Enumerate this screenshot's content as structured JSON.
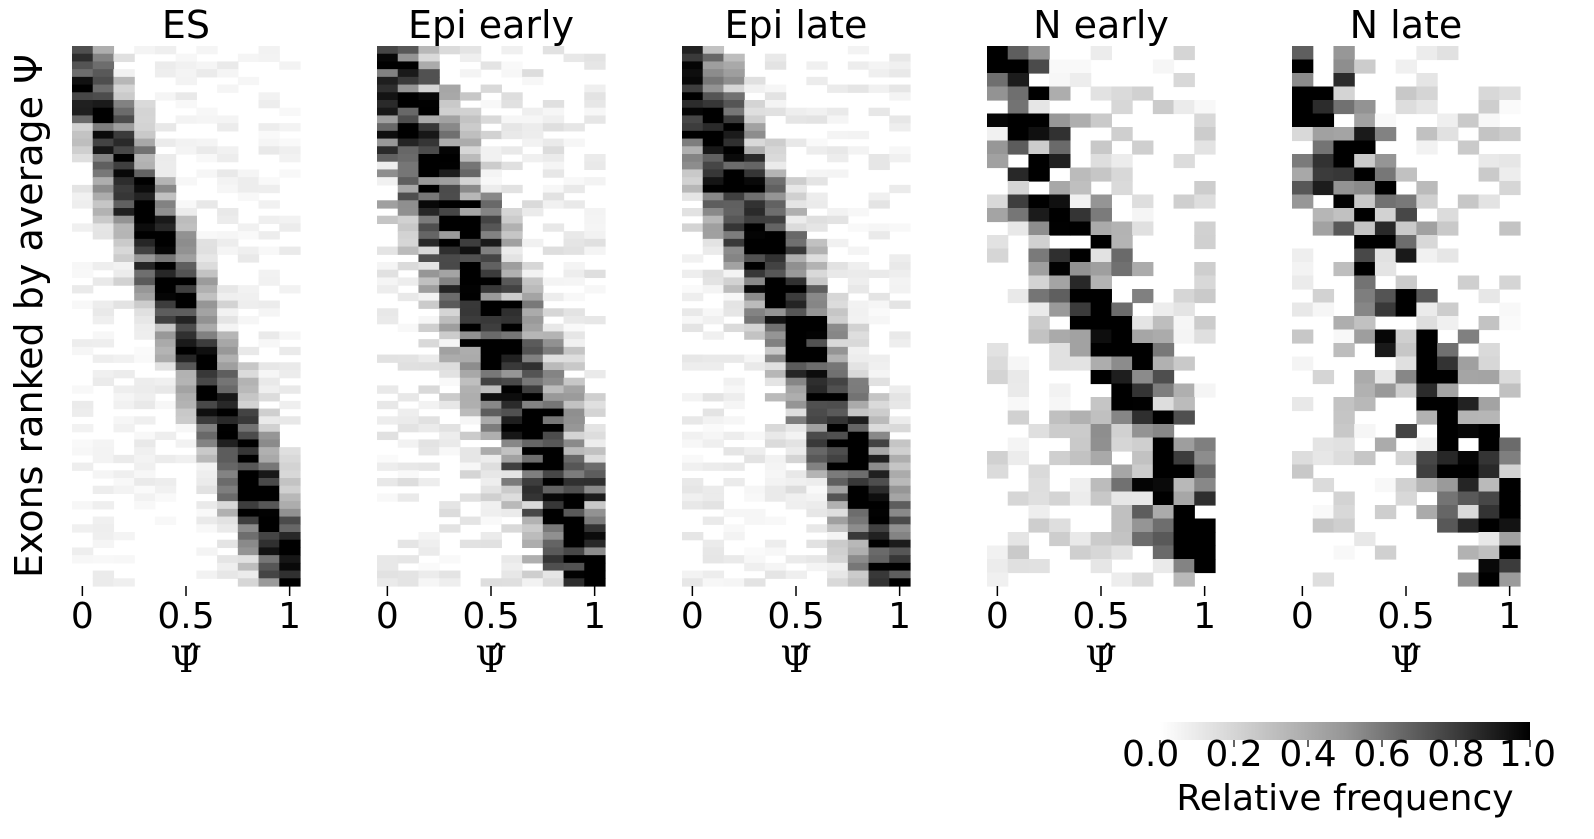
{
  "figure": {
    "ylabel": "Exons ranked by average Ψ",
    "colorbar": {
      "label": "Relative frequency",
      "ticks": [
        "0.0",
        "0.2",
        "0.4",
        "0.6",
        "0.8",
        "1.0"
      ],
      "range": [
        0,
        1
      ],
      "colormap": "Greys",
      "low_color": "#ffffff",
      "high_color": "#000000"
    }
  },
  "chart_data": [
    {
      "type": "heatmap",
      "title": "ES",
      "xlabel": "Ψ̂",
      "xticks": [
        "0",
        "0.5",
        "1"
      ],
      "xlim": [
        0,
        1
      ],
      "n_bins": 11,
      "n_rows": 70,
      "peak_start": 0.02,
      "peak_end": 0.97,
      "spread": 0.09,
      "noise": 0.22,
      "sparsity": 0.0,
      "seed": 11
    },
    {
      "type": "heatmap",
      "title": "Epi early",
      "xlabel": "Ψ̂",
      "xticks": [
        "0",
        "0.5",
        "1"
      ],
      "xlim": [
        0,
        1
      ],
      "n_bins": 11,
      "n_rows": 70,
      "peak_start": 0.03,
      "peak_end": 0.97,
      "spread": 0.13,
      "noise": 0.35,
      "sparsity": 0.0,
      "seed": 23
    },
    {
      "type": "heatmap",
      "title": "Epi late",
      "xlabel": "Ψ̂",
      "xticks": [
        "0",
        "0.5",
        "1"
      ],
      "xlim": [
        0,
        1
      ],
      "n_bins": 11,
      "n_rows": 70,
      "peak_start": 0.0,
      "peak_end": 0.97,
      "spread": 0.11,
      "noise": 0.28,
      "sparsity": 0.0,
      "seed": 37
    },
    {
      "type": "heatmap",
      "title": "N early",
      "xlabel": "Ψ̂",
      "xticks": [
        "0",
        "0.5",
        "1"
      ],
      "xlim": [
        0,
        1
      ],
      "n_bins": 11,
      "n_rows": 40,
      "peak_start": 0.02,
      "peak_end": 0.97,
      "spread": 0.13,
      "noise": 0.55,
      "sparsity": 0.22,
      "seed": 51
    },
    {
      "type": "heatmap",
      "title": "N late",
      "xlabel": "Ψ̂",
      "xticks": [
        "0",
        "0.5",
        "1"
      ],
      "xlim": [
        0,
        1
      ],
      "n_bins": 11,
      "n_rows": 40,
      "peak_start": 0.02,
      "peak_end": 0.97,
      "spread": 0.13,
      "noise": 0.6,
      "sparsity": 0.32,
      "seed": 67
    }
  ]
}
